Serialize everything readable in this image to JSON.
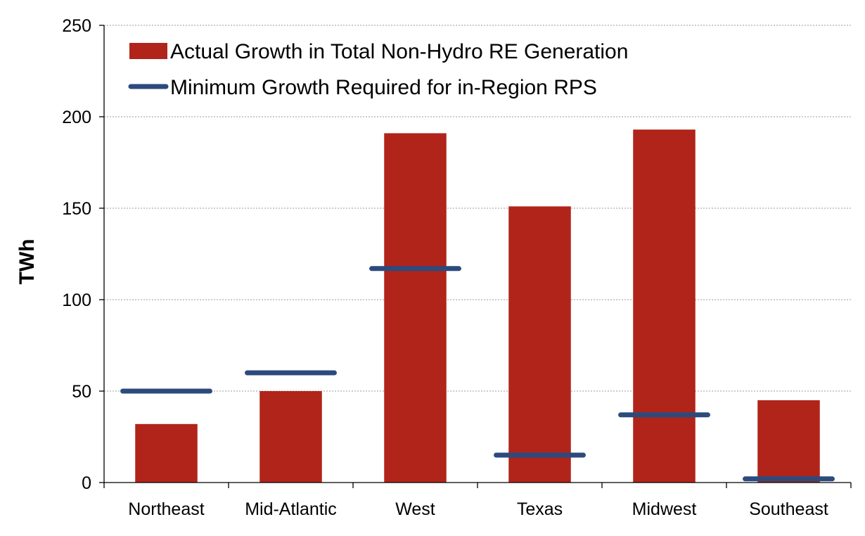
{
  "chart_data": {
    "type": "bar",
    "title": "",
    "xlabel": "",
    "ylabel": "TWh",
    "ylim": [
      0,
      250
    ],
    "yticks": [
      0,
      50,
      100,
      150,
      200,
      250
    ],
    "grid": true,
    "legend_position": "top-left",
    "categories": [
      "Northeast",
      "Mid-Atlantic",
      "West",
      "Texas",
      "Midwest",
      "Southeast"
    ],
    "series": [
      {
        "name": "Actual Growth in Total Non-Hydro RE Generation",
        "kind": "bar",
        "color": "#b0241a",
        "values": [
          32,
          50,
          191,
          151,
          193,
          45
        ]
      },
      {
        "name": "Minimum Growth Required for in-Region RPS",
        "kind": "marker-line",
        "color": "#2c4a7c",
        "values": [
          50,
          60,
          117,
          15,
          37,
          2
        ]
      }
    ]
  }
}
